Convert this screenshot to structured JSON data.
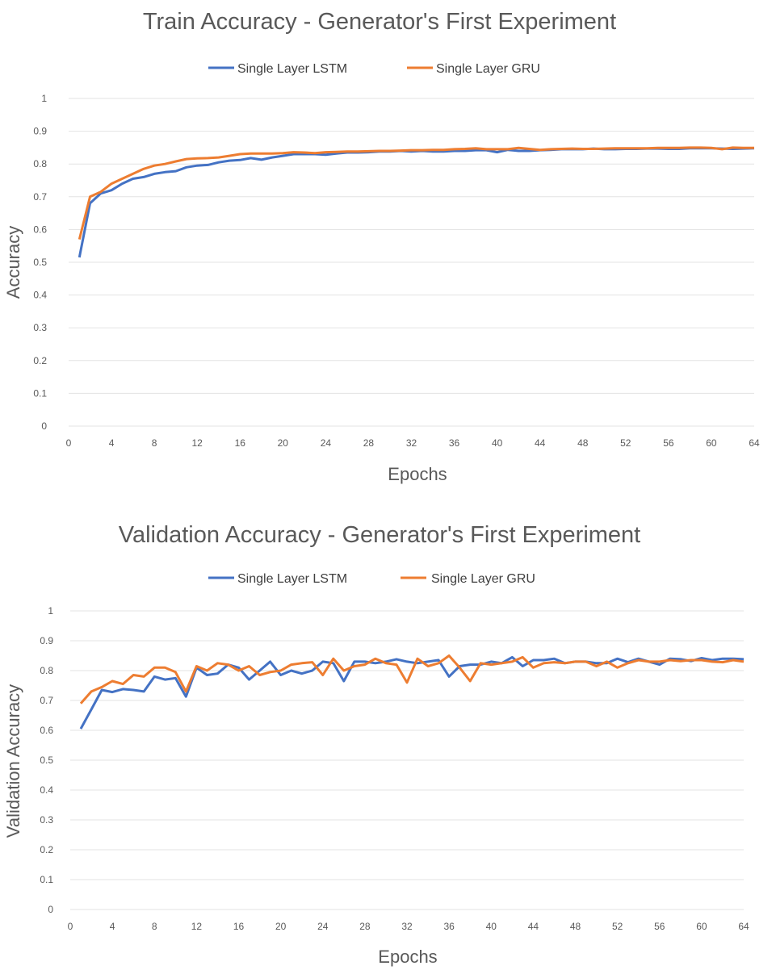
{
  "colors": {
    "lstm": "#4472C4",
    "gru": "#ED7D31"
  },
  "chart_data": [
    {
      "type": "line",
      "title": "Train Accuracy - Generator's First Experiment",
      "xlabel": "Epochs",
      "ylabel": "Accuracy",
      "xlim": [
        0,
        64
      ],
      "ylim": [
        0,
        1
      ],
      "xticks": [
        "0",
        "4",
        "8",
        "12",
        "16",
        "20",
        "24",
        "28",
        "32",
        "36",
        "40",
        "44",
        "48",
        "52",
        "56",
        "60",
        "64"
      ],
      "yticks": [
        "0",
        "0.1",
        "0.2",
        "0.3",
        "0.4",
        "0.5",
        "0.6",
        "0.7",
        "0.8",
        "0.9",
        "1"
      ],
      "grid": true,
      "legend_position": "top",
      "x_start": 1,
      "series": [
        {
          "name": "Single Layer LSTM",
          "values": [
            0.515,
            0.68,
            0.71,
            0.72,
            0.74,
            0.755,
            0.76,
            0.77,
            0.775,
            0.778,
            0.79,
            0.795,
            0.797,
            0.805,
            0.81,
            0.812,
            0.818,
            0.813,
            0.82,
            0.825,
            0.83,
            0.83,
            0.83,
            0.828,
            0.832,
            0.835,
            0.835,
            0.836,
            0.838,
            0.838,
            0.84,
            0.838,
            0.84,
            0.838,
            0.838,
            0.84,
            0.84,
            0.842,
            0.842,
            0.836,
            0.843,
            0.84,
            0.84,
            0.842,
            0.843,
            0.845,
            0.845,
            0.845,
            0.847,
            0.845,
            0.845,
            0.846,
            0.846,
            0.847,
            0.847,
            0.846,
            0.846,
            0.848,
            0.848,
            0.848,
            0.847,
            0.846,
            0.847,
            0.848
          ]
        },
        {
          "name": "Single Layer GRU",
          "values": [
            0.57,
            0.7,
            0.715,
            0.74,
            0.755,
            0.77,
            0.785,
            0.795,
            0.8,
            0.808,
            0.815,
            0.817,
            0.818,
            0.82,
            0.825,
            0.83,
            0.832,
            0.832,
            0.832,
            0.833,
            0.836,
            0.835,
            0.833,
            0.836,
            0.837,
            0.838,
            0.838,
            0.839,
            0.84,
            0.84,
            0.841,
            0.842,
            0.842,
            0.843,
            0.843,
            0.845,
            0.846,
            0.848,
            0.845,
            0.845,
            0.845,
            0.849,
            0.846,
            0.843,
            0.845,
            0.846,
            0.847,
            0.846,
            0.846,
            0.847,
            0.848,
            0.848,
            0.848,
            0.848,
            0.849,
            0.849,
            0.849,
            0.85,
            0.85,
            0.849,
            0.845,
            0.85,
            0.849,
            0.849
          ]
        }
      ]
    },
    {
      "type": "line",
      "title": "Validation Accuracy - Generator's First Experiment",
      "xlabel": "Epochs",
      "ylabel": "Validation Accuracy",
      "xlim": [
        0,
        64
      ],
      "ylim": [
        0,
        1
      ],
      "xticks": [
        "0",
        "4",
        "8",
        "12",
        "16",
        "20",
        "24",
        "28",
        "32",
        "36",
        "40",
        "44",
        "48",
        "52",
        "56",
        "60",
        "64"
      ],
      "yticks": [
        "0",
        "0.1",
        "0.2",
        "0.3",
        "0.4",
        "0.5",
        "0.6",
        "0.7",
        "0.8",
        "0.9",
        "1"
      ],
      "grid": true,
      "legend_position": "top",
      "x_start": 1,
      "series": [
        {
          "name": "Single Layer LSTM",
          "values": [
            0.605,
            0.67,
            0.735,
            0.728,
            0.738,
            0.735,
            0.73,
            0.78,
            0.77,
            0.775,
            0.713,
            0.81,
            0.785,
            0.79,
            0.82,
            0.81,
            0.77,
            0.8,
            0.83,
            0.785,
            0.8,
            0.79,
            0.8,
            0.83,
            0.825,
            0.765,
            0.83,
            0.83,
            0.825,
            0.83,
            0.838,
            0.83,
            0.825,
            0.83,
            0.835,
            0.78,
            0.815,
            0.82,
            0.82,
            0.83,
            0.825,
            0.845,
            0.815,
            0.835,
            0.835,
            0.84,
            0.825,
            0.83,
            0.83,
            0.825,
            0.825,
            0.84,
            0.828,
            0.84,
            0.83,
            0.82,
            0.84,
            0.838,
            0.832,
            0.842,
            0.835,
            0.84,
            0.84,
            0.838
          ]
        },
        {
          "name": "Single Layer GRU",
          "values": [
            0.69,
            0.73,
            0.745,
            0.765,
            0.755,
            0.785,
            0.78,
            0.81,
            0.81,
            0.795,
            0.73,
            0.815,
            0.8,
            0.825,
            0.82,
            0.8,
            0.815,
            0.785,
            0.795,
            0.8,
            0.82,
            0.825,
            0.828,
            0.785,
            0.84,
            0.8,
            0.815,
            0.82,
            0.84,
            0.825,
            0.82,
            0.76,
            0.84,
            0.815,
            0.825,
            0.85,
            0.81,
            0.765,
            0.825,
            0.82,
            0.825,
            0.83,
            0.845,
            0.81,
            0.825,
            0.828,
            0.825,
            0.83,
            0.83,
            0.815,
            0.83,
            0.81,
            0.825,
            0.835,
            0.83,
            0.83,
            0.835,
            0.832,
            0.835,
            0.835,
            0.83,
            0.828,
            0.835,
            0.83
          ]
        }
      ]
    }
  ]
}
